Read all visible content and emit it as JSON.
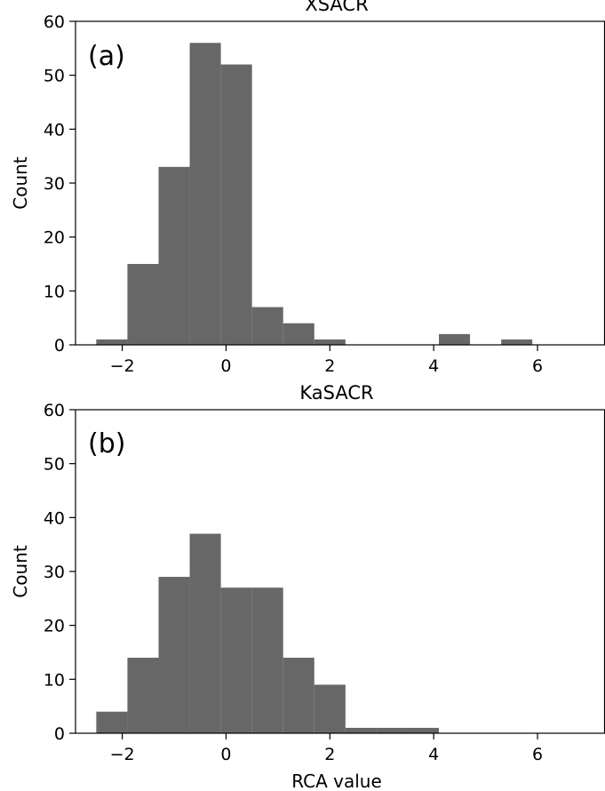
{
  "chart_data": [
    {
      "type": "bar",
      "title": "XSACR",
      "panel_label": "(a)",
      "xlabel": "",
      "ylabel": "Count",
      "xlim": [
        -2.9,
        7.3
      ],
      "ylim": [
        0,
        60
      ],
      "xticks": [
        -2,
        0,
        2,
        4,
        6
      ],
      "xtick_labels": [
        "−2",
        "0",
        "2",
        "4",
        "6"
      ],
      "yticks": [
        0,
        10,
        20,
        30,
        40,
        50,
        60
      ],
      "bar_color": "#676767",
      "bins": [
        {
          "x0": -2.5,
          "x1": -1.9,
          "count": 1
        },
        {
          "x0": -1.9,
          "x1": -1.3,
          "count": 15
        },
        {
          "x0": -1.3,
          "x1": -0.7,
          "count": 33
        },
        {
          "x0": -0.7,
          "x1": -0.1,
          "count": 56
        },
        {
          "x0": -0.1,
          "x1": 0.5,
          "count": 52
        },
        {
          "x0": 0.5,
          "x1": 1.1,
          "count": 7
        },
        {
          "x0": 1.1,
          "x1": 1.7,
          "count": 4
        },
        {
          "x0": 1.7,
          "x1": 2.3,
          "count": 1
        },
        {
          "x0": 2.3,
          "x1": 2.9,
          "count": 0
        },
        {
          "x0": 2.9,
          "x1": 3.5,
          "count": 0
        },
        {
          "x0": 3.5,
          "x1": 4.1,
          "count": 0
        },
        {
          "x0": 4.1,
          "x1": 4.7,
          "count": 2
        },
        {
          "x0": 4.7,
          "x1": 5.3,
          "count": 0
        },
        {
          "x0": 5.3,
          "x1": 5.9,
          "count": 1
        }
      ]
    },
    {
      "type": "bar",
      "title": "KaSACR",
      "panel_label": "(b)",
      "xlabel": "RCA value",
      "ylabel": "Count",
      "xlim": [
        -2.9,
        7.3
      ],
      "ylim": [
        0,
        60
      ],
      "xticks": [
        -2,
        0,
        2,
        4,
        6
      ],
      "xtick_labels": [
        "−2",
        "0",
        "2",
        "4",
        "6"
      ],
      "yticks": [
        0,
        10,
        20,
        30,
        40,
        50,
        60
      ],
      "bar_color": "#676767",
      "bins": [
        {
          "x0": -2.5,
          "x1": -1.9,
          "count": 4
        },
        {
          "x0": -1.9,
          "x1": -1.3,
          "count": 14
        },
        {
          "x0": -1.3,
          "x1": -0.7,
          "count": 29
        },
        {
          "x0": -0.7,
          "x1": -0.1,
          "count": 37
        },
        {
          "x0": -0.1,
          "x1": 0.5,
          "count": 27
        },
        {
          "x0": 0.5,
          "x1": 1.1,
          "count": 27
        },
        {
          "x0": 1.1,
          "x1": 1.7,
          "count": 14
        },
        {
          "x0": 1.7,
          "x1": 2.3,
          "count": 9
        },
        {
          "x0": 2.3,
          "x1": 2.9,
          "count": 1
        },
        {
          "x0": 2.9,
          "x1": 3.5,
          "count": 1
        },
        {
          "x0": 3.5,
          "x1": 4.1,
          "count": 1
        }
      ]
    }
  ]
}
